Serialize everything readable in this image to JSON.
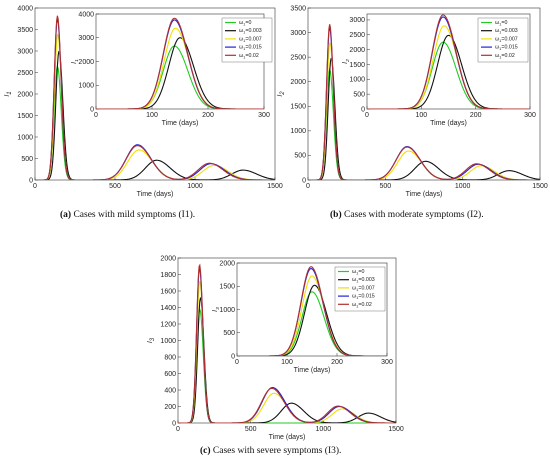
{
  "captions": [
    {
      "tag": "(a)",
      "text": "Cases with mild symptoms (I1)."
    },
    {
      "tag": "(b)",
      "text": "Cases with moderate symptoms (I2)."
    },
    {
      "tag": "(c)",
      "text": "Cases with severe symptoms (I3)."
    }
  ],
  "chart_data": [
    {
      "id": "a",
      "type": "line",
      "ylabel": "I1",
      "xlabel": "Time (days)",
      "xlim": [
        0,
        1500
      ],
      "ylim": [
        0,
        4000
      ],
      "xticks": [
        0,
        500,
        1000,
        1500
      ],
      "yticks": [
        0,
        500,
        1000,
        1500,
        2000,
        2500,
        3000,
        3500,
        4000
      ],
      "legend_position": "top-right",
      "series": [
        {
          "name": "ω1=0",
          "color": "#22cc22",
          "peaks": [
            [
              140,
              2650
            ]
          ]
        },
        {
          "name": "ω1=0.003",
          "color": "#111111",
          "peaks": [
            [
              150,
              3000
            ],
            [
              760,
              460
            ],
            [
              1300,
              230
            ]
          ]
        },
        {
          "name": "ω1=0.007",
          "color": "#f0e000",
          "peaks": [
            [
              142,
              3400
            ],
            [
              650,
              700
            ],
            [
              1120,
              340
            ]
          ]
        },
        {
          "name": "ω1=0.015",
          "color": "#2222dd",
          "peaks": [
            [
              140,
              3750
            ],
            [
              640,
              820
            ],
            [
              1100,
              380
            ]
          ]
        },
        {
          "name": "ω1=0.02",
          "color": "#b03030",
          "peaks": [
            [
              140,
              3820
            ],
            [
              640,
              800
            ],
            [
              1090,
              390
            ]
          ]
        }
      ],
      "inset": {
        "xlim": [
          0,
          300
        ],
        "ylim": [
          0,
          4000
        ],
        "xticks": [
          0,
          100,
          200,
          300
        ],
        "yticks": [
          0,
          1000,
          2000,
          3000,
          4000
        ],
        "xlabel": "Time (days)",
        "ylabel": "I1"
      }
    },
    {
      "id": "b",
      "type": "line",
      "ylabel": "I2",
      "xlabel": "Time (days)",
      "xlim": [
        0,
        1500
      ],
      "ylim": [
        0,
        3500
      ],
      "xticks": [
        0,
        500,
        1000,
        1500
      ],
      "yticks": [
        0,
        500,
        1000,
        1500,
        2000,
        2500,
        3000,
        3500
      ],
      "legend_position": "top-right",
      "series": [
        {
          "name": "ω1=0",
          "color": "#22cc22",
          "peaks": [
            [
              140,
              2250
            ]
          ]
        },
        {
          "name": "ω1=0.003",
          "color": "#111111",
          "peaks": [
            [
              150,
              2480
            ],
            [
              760,
              380
            ],
            [
              1300,
              190
            ]
          ]
        },
        {
          "name": "ω1=0.007",
          "color": "#f0e000",
          "peaks": [
            [
              142,
              2800
            ],
            [
              650,
              590
            ],
            [
              1120,
              290
            ]
          ]
        },
        {
          "name": "ω1=0.015",
          "color": "#2222dd",
          "peaks": [
            [
              140,
              3100
            ],
            [
              640,
              680
            ],
            [
              1100,
              320
            ]
          ]
        },
        {
          "name": "ω1=0.02",
          "color": "#b03030",
          "peaks": [
            [
              140,
              3170
            ],
            [
              640,
              670
            ],
            [
              1090,
              330
            ]
          ]
        }
      ],
      "inset": {
        "xlim": [
          0,
          300
        ],
        "ylim": [
          0,
          3200
        ],
        "xticks": [
          0,
          100,
          200,
          300
        ],
        "yticks": [
          0,
          500,
          1000,
          1500,
          2000,
          2500,
          3000
        ],
        "xlabel": "Time (days)",
        "ylabel": "I2"
      }
    },
    {
      "id": "c",
      "type": "line",
      "ylabel": "I3",
      "xlabel": "Time (days)",
      "xlim": [
        0,
        1500
      ],
      "ylim": [
        0,
        2000
      ],
      "xticks": [
        0,
        500,
        1000,
        1500
      ],
      "yticks": [
        0,
        200,
        400,
        600,
        800,
        1000,
        1200,
        1400,
        1600,
        1800,
        2000
      ],
      "legend_position": "top-right",
      "series": [
        {
          "name": "ω1=0",
          "color": "#22cc22",
          "peaks": [
            [
              150,
              1380
            ]
          ]
        },
        {
          "name": "ω1=0.003",
          "color": "#111111",
          "peaks": [
            [
              155,
              1520
            ],
            [
              780,
              240
            ],
            [
              1310,
              120
            ]
          ]
        },
        {
          "name": "ω1=0.007",
          "color": "#f0e000",
          "peaks": [
            [
              150,
              1720
            ],
            [
              660,
              360
            ],
            [
              1130,
              170
            ]
          ]
        },
        {
          "name": "ω1=0.015",
          "color": "#2222dd",
          "peaks": [
            [
              148,
              1880
            ],
            [
              650,
              430
            ],
            [
              1110,
              200
            ]
          ]
        },
        {
          "name": "ω1=0.02",
          "color": "#b03030",
          "peaks": [
            [
              148,
              1920
            ],
            [
              645,
              420
            ],
            [
              1100,
              205
            ]
          ]
        }
      ],
      "inset": {
        "xlim": [
          0,
          300
        ],
        "ylim": [
          0,
          2000
        ],
        "xticks": [
          0,
          100,
          200,
          300
        ],
        "yticks": [
          0,
          500,
          1000,
          1500,
          2000
        ],
        "xlabel": "Time (days)",
        "ylabel": "I3"
      }
    }
  ]
}
